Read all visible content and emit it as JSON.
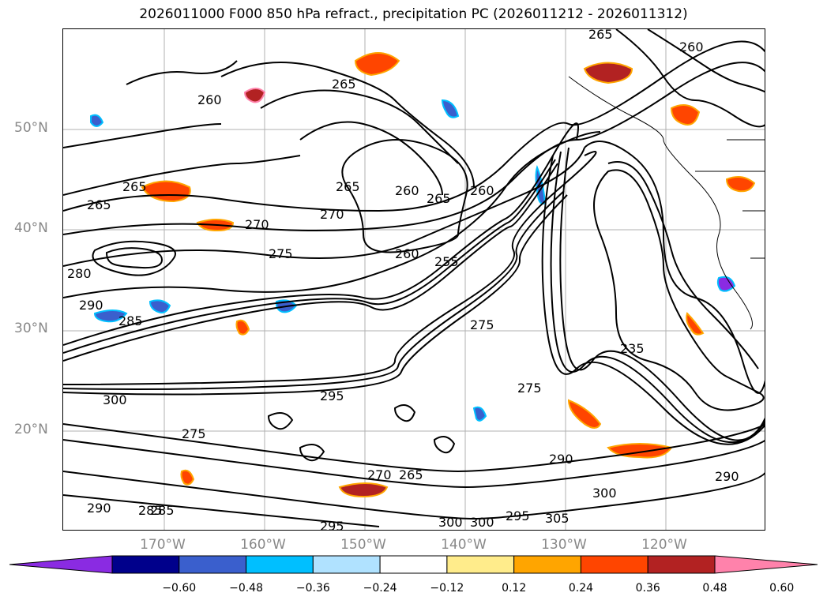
{
  "title": "2026011000 F000 850 hPa refract., precipitation PC (2026011212 - 2026011312)",
  "map": {
    "lat_labels": [
      "50°N",
      "40°N",
      "30°N",
      "20°N"
    ],
    "lon_labels": [
      "170°W",
      "160°W",
      "150°W",
      "140°W",
      "130°W",
      "120°W"
    ],
    "contour_labels": [
      "265",
      "260",
      "265",
      "260",
      "265",
      "265",
      "260",
      "265",
      "260",
      "265",
      "270",
      "270",
      "275",
      "280",
      "290",
      "285",
      "275",
      "260",
      "255",
      "275",
      "235",
      "295",
      "300",
      "275",
      "285",
      "290",
      "300",
      "300",
      "295",
      "305",
      "290",
      "300",
      "290",
      "295",
      "270",
      "265",
      "285"
    ],
    "grid_color": "#b0b0b0"
  },
  "colorbar": {
    "ticks": [
      "−0.60",
      "−0.48",
      "−0.36",
      "−0.24",
      "−0.12",
      "0.12",
      "0.24",
      "0.36",
      "0.48",
      "0.60"
    ],
    "colors": [
      "#8a2be2",
      "#00008b",
      "#3a5fcd",
      "#00bfff",
      "#b0e2ff",
      "#ffffff",
      "#ffec8b",
      "#ffa500",
      "#ff4500",
      "#b22222",
      "#ff82ab"
    ]
  }
}
